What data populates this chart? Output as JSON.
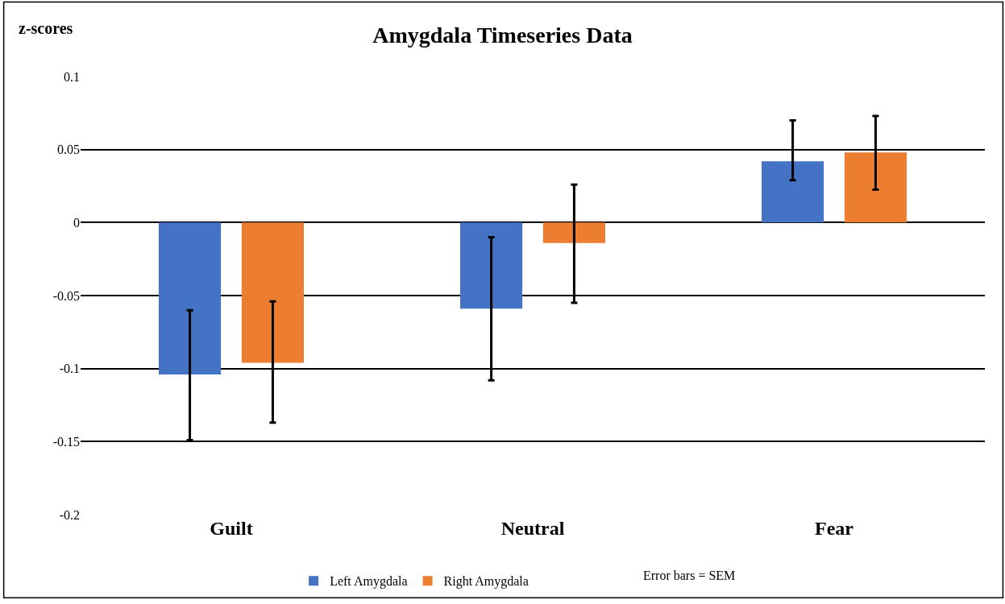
{
  "chart_data": {
    "type": "bar",
    "title": "Amygdala Timeseries Data",
    "ylabel": "z-scores",
    "categories": [
      "Guilt",
      "Neutral",
      "Fear"
    ],
    "series": [
      {
        "name": "Left Amygdala",
        "color": "#4472c4",
        "values": [
          -0.104,
          -0.059,
          0.042
        ],
        "errors": [
          [
            -0.149,
            -0.06
          ],
          [
            -0.108,
            -0.01
          ],
          [
            0.029,
            0.07
          ]
        ]
      },
      {
        "name": "Right Amygdala",
        "color": "#ed7d31",
        "values": [
          -0.096,
          -0.014,
          0.048
        ],
        "errors": [
          [
            -0.137,
            -0.054
          ],
          [
            -0.055,
            0.026
          ],
          [
            0.0225,
            0.073
          ]
        ]
      }
    ],
    "ylim": [
      -0.2,
      0.1
    ],
    "yticks": [
      -0.2,
      -0.15,
      -0.1,
      -0.05,
      0,
      0.05,
      0.1
    ],
    "grid": "y",
    "legend": "bottom",
    "annotations": [
      "Error bars = SEM"
    ]
  }
}
